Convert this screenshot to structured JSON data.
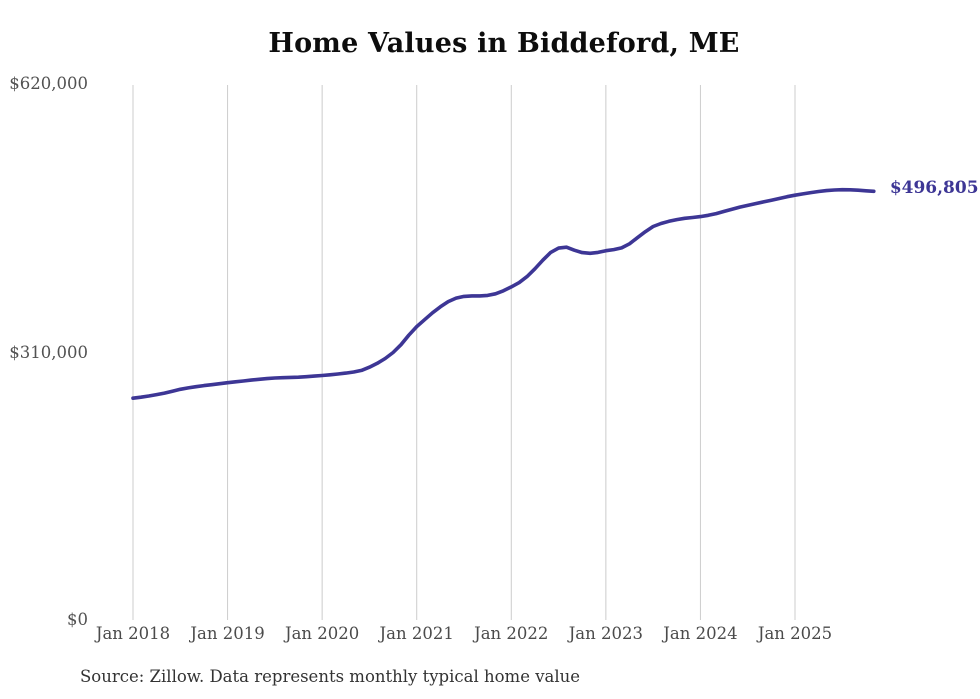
{
  "chart_data": {
    "type": "line",
    "title": "Home Values in Biddeford, ME",
    "end_label": "$496,805",
    "end_value": 496805,
    "source": "Source: Zillow. Data represents monthly typical home value",
    "line_color": "#3d3695",
    "grid_color": "#cccccc",
    "grid": "vertical-only",
    "legend": "none",
    "ylim": [
      0,
      620000
    ],
    "y_tick_labels": [
      "$620,000",
      "$310,000",
      "$0"
    ],
    "y_tick_values": [
      620000,
      310000,
      0
    ],
    "x_tick_labels": [
      "Jan 2018",
      "Jan 2019",
      "Jan 2020",
      "Jan 2021",
      "Jan 2022",
      "Jan 2023",
      "Jan 2024",
      "Jan 2025"
    ],
    "x_tick_month_indices": [
      0,
      12,
      24,
      36,
      48,
      60,
      72,
      84
    ],
    "series_name": "Monthly typical home value",
    "x": [
      "2018-01",
      "2018-02",
      "2018-03",
      "2018-04",
      "2018-05",
      "2018-06",
      "2018-07",
      "2018-08",
      "2018-09",
      "2018-10",
      "2018-11",
      "2018-12",
      "2019-01",
      "2019-02",
      "2019-03",
      "2019-04",
      "2019-05",
      "2019-06",
      "2019-07",
      "2019-08",
      "2019-09",
      "2019-10",
      "2019-11",
      "2019-12",
      "2020-01",
      "2020-02",
      "2020-03",
      "2020-04",
      "2020-05",
      "2020-06",
      "2020-07",
      "2020-08",
      "2020-09",
      "2020-10",
      "2020-11",
      "2020-12",
      "2021-01",
      "2021-02",
      "2021-03",
      "2021-04",
      "2021-05",
      "2021-06",
      "2021-07",
      "2021-08",
      "2021-09",
      "2021-10",
      "2021-11",
      "2021-12",
      "2022-01",
      "2022-02",
      "2022-03",
      "2022-04",
      "2022-05",
      "2022-06",
      "2022-07",
      "2022-08",
      "2022-09",
      "2022-10",
      "2022-11",
      "2022-12",
      "2023-01",
      "2023-02",
      "2023-03",
      "2023-04",
      "2023-05",
      "2023-06",
      "2023-07",
      "2023-08",
      "2023-09",
      "2023-10",
      "2023-11",
      "2023-12",
      "2024-01",
      "2024-02",
      "2024-03",
      "2024-04",
      "2024-05",
      "2024-06",
      "2024-07",
      "2024-08",
      "2024-09",
      "2024-10",
      "2024-11",
      "2024-12",
      "2025-01",
      "2025-02",
      "2025-03",
      "2025-04",
      "2025-05",
      "2025-06",
      "2025-07",
      "2025-08",
      "2025-09",
      "2025-10",
      "2025-11"
    ],
    "values": [
      257000,
      258200,
      259600,
      261200,
      263000,
      265100,
      267300,
      269000,
      270400,
      271600,
      272700,
      273900,
      275000,
      276000,
      277000,
      278000,
      279000,
      279800,
      280400,
      280800,
      281100,
      281400,
      282000,
      282700,
      283400,
      284200,
      285100,
      286100,
      287400,
      289200,
      293000,
      297500,
      303000,
      310000,
      319000,
      330000,
      340000,
      348000,
      356000,
      363000,
      369000,
      373000,
      375000,
      375600,
      375600,
      376200,
      378000,
      381500,
      386000,
      391000,
      398000,
      407000,
      417000,
      426000,
      431000,
      432000,
      428500,
      425800,
      425000,
      426000,
      428000,
      429300,
      431200,
      436000,
      443000,
      450000,
      456000,
      459500,
      462000,
      464000,
      465500,
      466500,
      467500,
      469000,
      471000,
      473500,
      476000,
      478500,
      480500,
      482500,
      484500,
      486500,
      488500,
      490500,
      492300,
      493800,
      495300,
      496600,
      497600,
      498300,
      498700,
      498600,
      498100,
      497400,
      496805
    ]
  }
}
